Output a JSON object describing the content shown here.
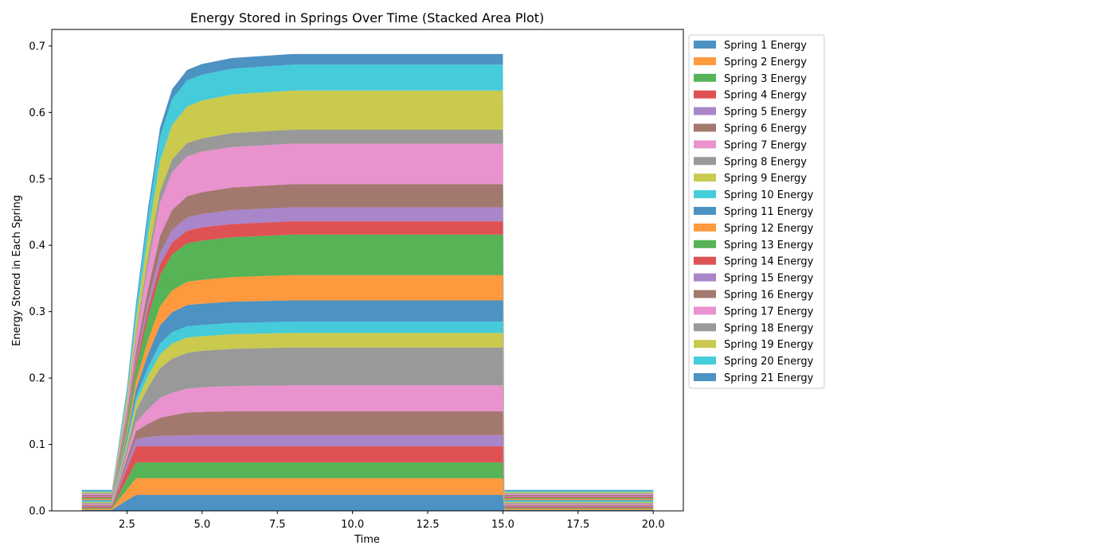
{
  "chart_data": {
    "type": "area",
    "title": "Energy Stored in Springs Over Time (Stacked Area Plot)",
    "xlabel": "Time",
    "ylabel": "Energy Stored in Each Spring",
    "xlim": [
      0,
      21
    ],
    "ylim": [
      0,
      0.725
    ],
    "xticks": [
      "2.5",
      "5.0",
      "7.5",
      "10.0",
      "12.5",
      "15.0",
      "17.5",
      "20.0"
    ],
    "yticks": [
      "0.0",
      "0.1",
      "0.2",
      "0.3",
      "0.4",
      "0.5",
      "0.6",
      "0.7"
    ],
    "grid": false,
    "legend_position": "outside-right",
    "x": [
      1.0,
      2.0,
      2.5,
      2.8,
      3.2,
      3.6,
      4.0,
      4.5,
      5.0,
      6.0,
      8.0,
      10.0,
      12.5,
      15.0,
      15.05,
      16.0,
      17.5,
      20.0
    ],
    "series": [
      {
        "name": "Spring 1 Energy",
        "color": "#1f77b4",
        "values": [
          0.0015,
          0.0015,
          0.016,
          0.024,
          0.024,
          0.024,
          0.024,
          0.024,
          0.024,
          0.024,
          0.024,
          0.024,
          0.024,
          0.024,
          0.0015,
          0.0015,
          0.0015,
          0.0015
        ]
      },
      {
        "name": "Spring 2 Energy",
        "color": "#ff7f0e",
        "values": [
          0.0015,
          0.0015,
          0.016,
          0.025,
          0.025,
          0.025,
          0.025,
          0.025,
          0.025,
          0.025,
          0.025,
          0.025,
          0.025,
          0.025,
          0.0015,
          0.0015,
          0.0015,
          0.0015
        ]
      },
      {
        "name": "Spring 3 Energy",
        "color": "#2ca02c",
        "values": [
          0.0015,
          0.0015,
          0.016,
          0.024,
          0.024,
          0.024,
          0.024,
          0.024,
          0.024,
          0.024,
          0.024,
          0.024,
          0.024,
          0.024,
          0.0015,
          0.0015,
          0.0015,
          0.0015
        ]
      },
      {
        "name": "Spring 4 Energy",
        "color": "#d62728",
        "values": [
          0.0015,
          0.0015,
          0.016,
          0.024,
          0.024,
          0.024,
          0.024,
          0.024,
          0.024,
          0.024,
          0.024,
          0.024,
          0.024,
          0.024,
          0.0015,
          0.0015,
          0.0015,
          0.0015
        ]
      },
      {
        "name": "Spring 5 Energy",
        "color": "#9467bd",
        "values": [
          0.0015,
          0.0015,
          0.008,
          0.011,
          0.014,
          0.016,
          0.016,
          0.017,
          0.017,
          0.017,
          0.017,
          0.017,
          0.017,
          0.017,
          0.0015,
          0.0015,
          0.0015,
          0.0015
        ]
      },
      {
        "name": "Spring 6 Energy",
        "color": "#8c564b",
        "values": [
          0.0015,
          0.0015,
          0.007,
          0.012,
          0.02,
          0.027,
          0.031,
          0.034,
          0.035,
          0.036,
          0.036,
          0.036,
          0.036,
          0.036,
          0.0015,
          0.0015,
          0.0015,
          0.0015
        ]
      },
      {
        "name": "Spring 7 Energy",
        "color": "#e377c2",
        "values": [
          0.0015,
          0.0015,
          0.008,
          0.013,
          0.022,
          0.03,
          0.034,
          0.036,
          0.037,
          0.038,
          0.039,
          0.039,
          0.039,
          0.039,
          0.0015,
          0.0015,
          0.0015,
          0.0015
        ]
      },
      {
        "name": "Spring 8 Energy",
        "color": "#7f7f7f",
        "values": [
          0.0015,
          0.0015,
          0.009,
          0.018,
          0.033,
          0.045,
          0.051,
          0.054,
          0.055,
          0.056,
          0.057,
          0.057,
          0.057,
          0.057,
          0.0015,
          0.0015,
          0.0015,
          0.0015
        ]
      },
      {
        "name": "Spring 9 Energy",
        "color": "#bcbd22",
        "values": [
          0.0015,
          0.0015,
          0.006,
          0.011,
          0.017,
          0.021,
          0.023,
          0.023,
          0.022,
          0.022,
          0.022,
          0.022,
          0.022,
          0.022,
          0.0015,
          0.0015,
          0.0015,
          0.0015
        ]
      },
      {
        "name": "Spring 10 Energy",
        "color": "#17becf",
        "values": [
          0.0015,
          0.0015,
          0.005,
          0.009,
          0.013,
          0.016,
          0.017,
          0.017,
          0.017,
          0.017,
          0.017,
          0.017,
          0.017,
          0.017,
          0.0015,
          0.0015,
          0.0015,
          0.0015
        ]
      },
      {
        "name": "Spring 11 Energy",
        "color": "#1f77b4",
        "values": [
          0.0015,
          0.0015,
          0.007,
          0.012,
          0.02,
          0.027,
          0.03,
          0.032,
          0.032,
          0.032,
          0.032,
          0.032,
          0.032,
          0.032,
          0.0015,
          0.0015,
          0.0015,
          0.0015
        ]
      },
      {
        "name": "Spring 12 Energy",
        "color": "#ff7f0e",
        "values": [
          0.0015,
          0.0015,
          0.007,
          0.012,
          0.021,
          0.029,
          0.033,
          0.035,
          0.036,
          0.037,
          0.038,
          0.038,
          0.038,
          0.038,
          0.0015,
          0.0015,
          0.0015,
          0.0015
        ]
      },
      {
        "name": "Spring 13 Energy",
        "color": "#2ca02c",
        "values": [
          0.0015,
          0.0015,
          0.011,
          0.02,
          0.034,
          0.047,
          0.054,
          0.058,
          0.059,
          0.06,
          0.061,
          0.061,
          0.061,
          0.061,
          0.0015,
          0.0015,
          0.0015,
          0.0015
        ]
      },
      {
        "name": "Spring 14 Energy",
        "color": "#d62728",
        "values": [
          0.0015,
          0.0015,
          0.004,
          0.007,
          0.012,
          0.016,
          0.018,
          0.019,
          0.02,
          0.02,
          0.02,
          0.02,
          0.02,
          0.02,
          0.0015,
          0.0015,
          0.0015,
          0.0015
        ]
      },
      {
        "name": "Spring 15 Energy",
        "color": "#9467bd",
        "values": [
          0.0015,
          0.0015,
          0.004,
          0.007,
          0.012,
          0.017,
          0.019,
          0.02,
          0.02,
          0.021,
          0.021,
          0.021,
          0.021,
          0.021,
          0.0015,
          0.0015,
          0.0015,
          0.0015
        ]
      },
      {
        "name": "Spring 16 Energy",
        "color": "#8c564b",
        "values": [
          0.0015,
          0.0015,
          0.006,
          0.011,
          0.019,
          0.026,
          0.03,
          0.032,
          0.033,
          0.034,
          0.035,
          0.035,
          0.035,
          0.035,
          0.0015,
          0.0015,
          0.0015,
          0.0015
        ]
      },
      {
        "name": "Spring 17 Energy",
        "color": "#e377c2",
        "values": [
          0.0015,
          0.0015,
          0.011,
          0.021,
          0.036,
          0.05,
          0.057,
          0.06,
          0.061,
          0.061,
          0.061,
          0.061,
          0.061,
          0.061,
          0.0015,
          0.0015,
          0.0015,
          0.0015
        ]
      },
      {
        "name": "Spring 18 Energy",
        "color": "#7f7f7f",
        "values": [
          0.0015,
          0.0015,
          0.004,
          0.007,
          0.012,
          0.017,
          0.019,
          0.02,
          0.02,
          0.021,
          0.021,
          0.021,
          0.021,
          0.021,
          0.0015,
          0.0015,
          0.0015,
          0.0015
        ]
      },
      {
        "name": "Spring 19 Energy",
        "color": "#bcbd22",
        "values": [
          0.0015,
          0.0015,
          0.01,
          0.019,
          0.033,
          0.046,
          0.052,
          0.055,
          0.057,
          0.058,
          0.059,
          0.059,
          0.059,
          0.059,
          0.0015,
          0.0015,
          0.0015,
          0.0015
        ]
      },
      {
        "name": "Spring 20 Energy",
        "color": "#17becf",
        "values": [
          0.0015,
          0.0015,
          0.009,
          0.017,
          0.028,
          0.036,
          0.039,
          0.039,
          0.039,
          0.039,
          0.039,
          0.039,
          0.039,
          0.039,
          0.0015,
          0.0015,
          0.0015,
          0.0015
        ]
      },
      {
        "name": "Spring 21 Energy",
        "color": "#1f77b4",
        "values": [
          0.0015,
          0.0015,
          0.005,
          0.008,
          0.012,
          0.014,
          0.015,
          0.016,
          0.016,
          0.016,
          0.016,
          0.016,
          0.016,
          0.016,
          0.0015,
          0.0015,
          0.0015,
          0.0015
        ]
      }
    ]
  }
}
